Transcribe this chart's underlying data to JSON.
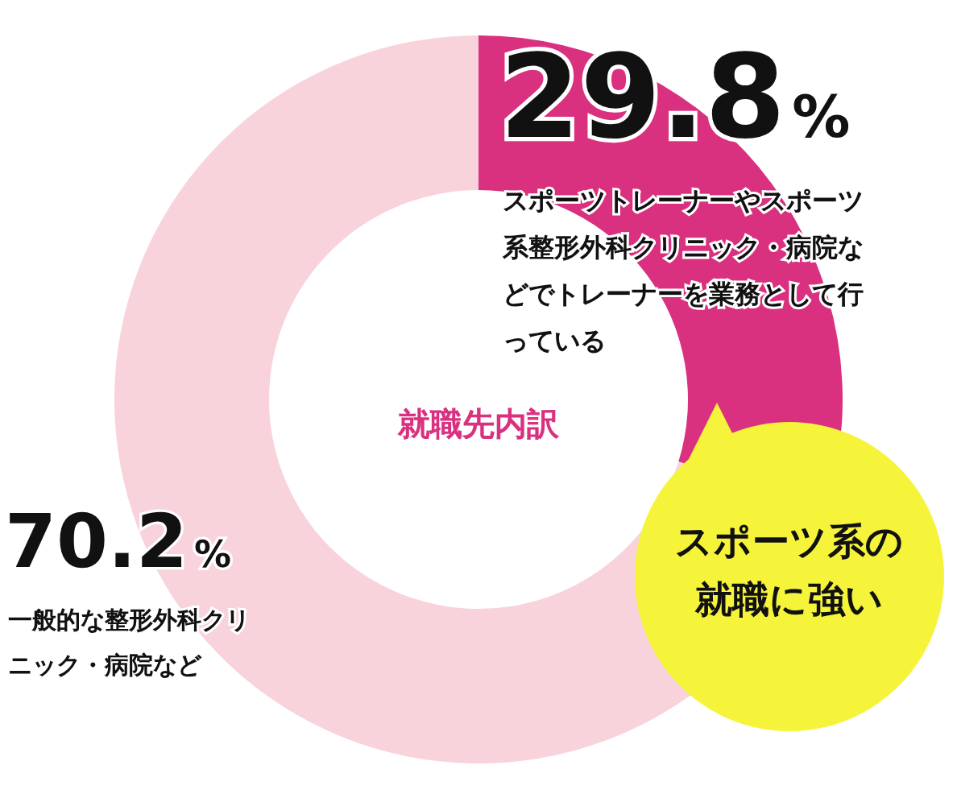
{
  "chart_data": {
    "type": "donut",
    "title": "就職先内訳",
    "categories": [
      "スポーツトレーナーやスポーツ系整形外科クリニック・病院などでトレーナーを業務として行っている",
      "一般的な整形外科クリニック・病院など"
    ],
    "values": [
      29.8,
      70.2
    ],
    "colors": [
      "#d9317f",
      "#f8d3dc"
    ],
    "value_labels": [
      "29.8%",
      "70.2%"
    ],
    "annotations": [
      "スポーツ系の就職に強い"
    ]
  }
}
